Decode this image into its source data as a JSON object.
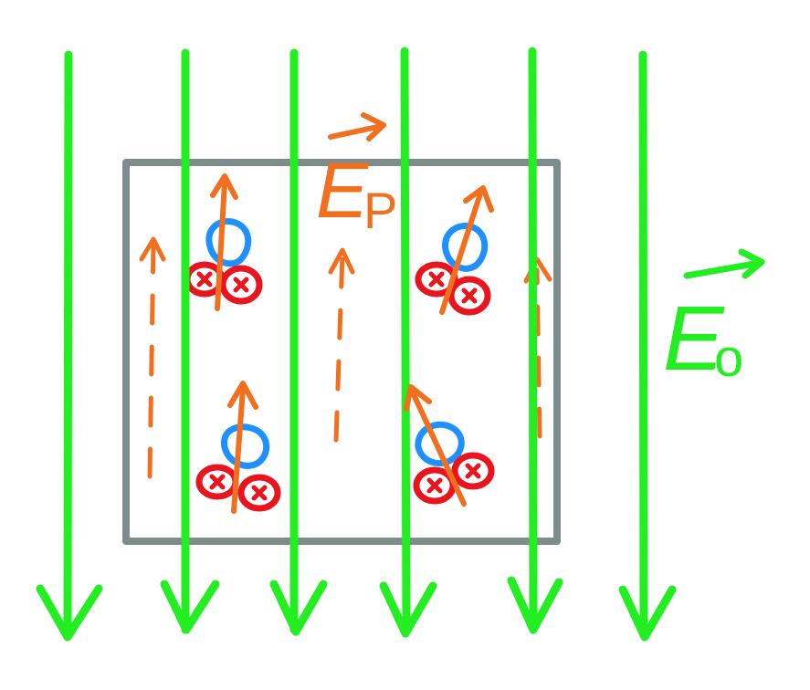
{
  "colors": {
    "external_field": "#22ee22",
    "polarization_field": "#f07020",
    "dielectric_box": "#7f8c8d",
    "electron_cloud": "#1e90ff",
    "nucleus": "#e8141e"
  },
  "labels": {
    "external_field": "E",
    "external_field_subscript": "o",
    "polarization_field": "E",
    "polarization_field_subscript": "P"
  },
  "molecule_charge_symbol": "+",
  "icons": {
    "external_field_arrow": "down-arrow-icon",
    "induced_dipole_arrow": "up-arrow-icon",
    "field_vector_arrow": "vector-arrow-icon"
  }
}
